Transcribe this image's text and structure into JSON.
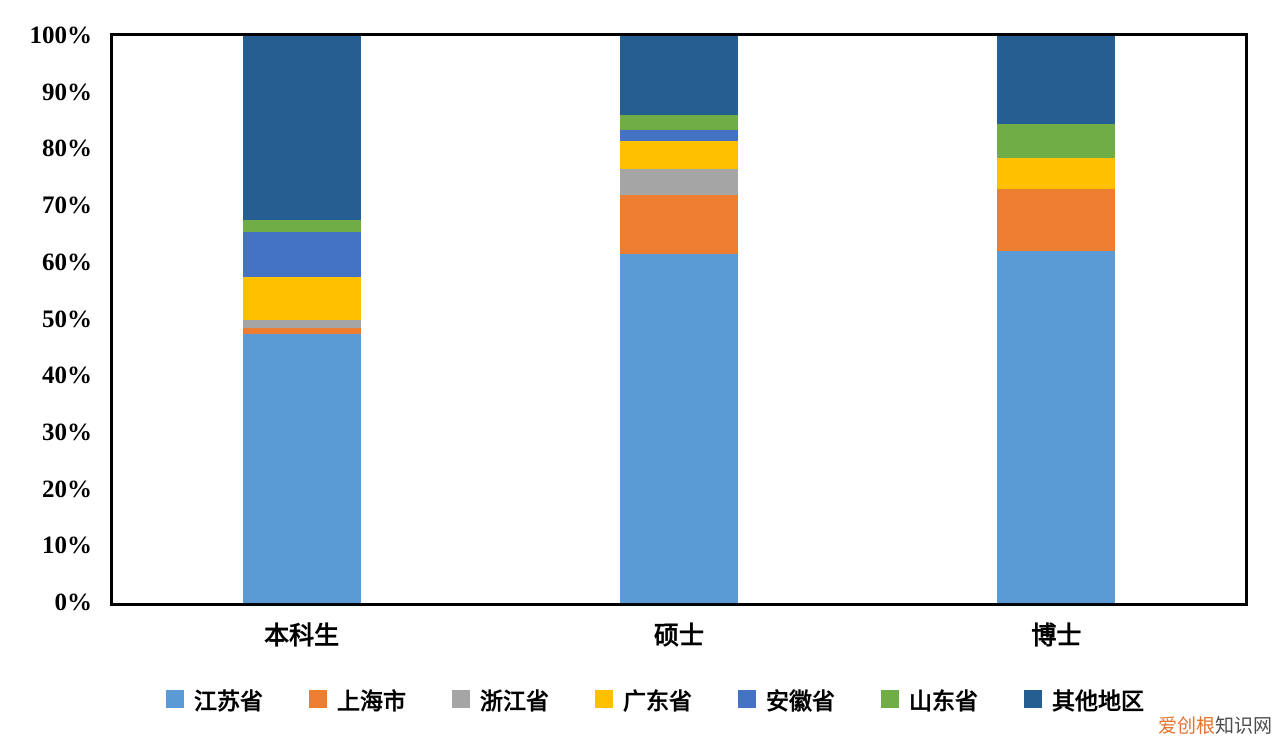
{
  "chart_data": {
    "type": "bar",
    "variant": "stacked-100-percent-column",
    "title": "",
    "xlabel": "",
    "ylabel": "",
    "categories": [
      "本科生",
      "硕士",
      "博士"
    ],
    "series": [
      {
        "name": "江苏省",
        "color": "#5B9BD5",
        "values": [
          47.5,
          61.5,
          62
        ]
      },
      {
        "name": "上海市",
        "color": "#ED7D31",
        "values": [
          1,
          10.5,
          11
        ]
      },
      {
        "name": "浙江省",
        "color": "#A5A5A5",
        "values": [
          1.5,
          4.5,
          0
        ]
      },
      {
        "name": "广东省",
        "color": "#FFC000",
        "values": [
          7.5,
          5,
          5.5
        ]
      },
      {
        "name": "安徽省",
        "color": "#4472C4",
        "values": [
          8,
          2,
          0
        ]
      },
      {
        "name": "山东省",
        "color": "#70AD47",
        "values": [
          2,
          2.5,
          6
        ]
      },
      {
        "name": "其他地区",
        "color": "#255E91",
        "values": [
          32.5,
          14,
          15.5
        ]
      }
    ],
    "ylim": [
      0,
      100
    ],
    "yticks": [
      "0%",
      "10%",
      "20%",
      "30%",
      "40%",
      "50%",
      "60%",
      "70%",
      "80%",
      "90%",
      "100%"
    ],
    "grid": false,
    "legend_position": "bottom",
    "plot_border_color": "#000000",
    "background": "#FFFFFF"
  },
  "watermark": {
    "primary": "爱创根",
    "secondary": "知识网",
    "primary_color": "#E4742E",
    "secondary_color": "#4D4D4D"
  }
}
